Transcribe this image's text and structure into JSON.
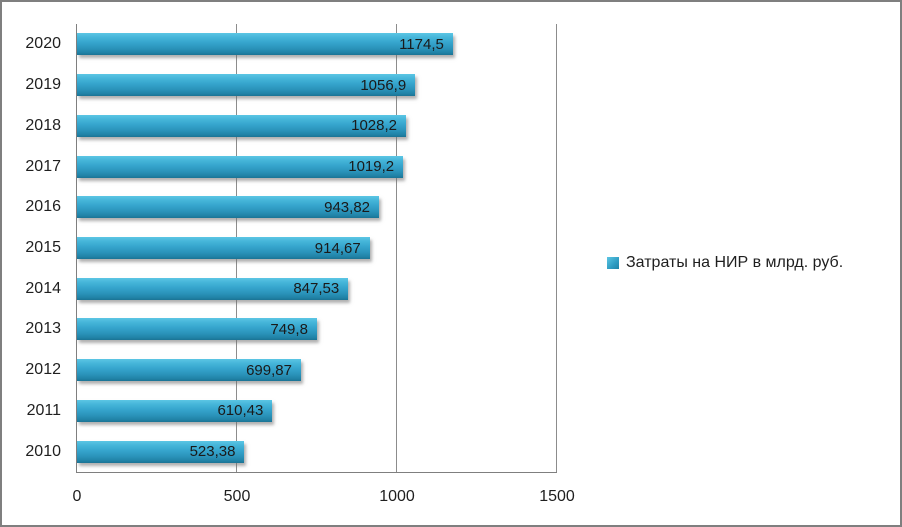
{
  "chart_data": {
    "type": "bar",
    "orientation": "horizontal",
    "title": "",
    "xlabel": "",
    "ylabel": "",
    "categories": [
      "2020",
      "2019",
      "2018",
      "2017",
      "2016",
      "2015",
      "2014",
      "2013",
      "2012",
      "2011",
      "2010"
    ],
    "values": [
      1174.5,
      1056.9,
      1028.2,
      1019.2,
      943.82,
      914.67,
      847.53,
      749.8,
      699.87,
      610.43,
      523.38
    ],
    "value_labels": [
      "1174,5",
      "1056,9",
      "1028,2",
      "1019,2",
      "943,82",
      "914,67",
      "847,53",
      "749,8",
      "699,87",
      "610,43",
      "523,38"
    ],
    "series": [
      {
        "name": "Затраты на НИР в млрд. руб.",
        "values": [
          1174.5,
          1056.9,
          1028.2,
          1019.2,
          943.82,
          914.67,
          847.53,
          749.8,
          699.87,
          610.43,
          523.38
        ]
      }
    ],
    "legend": [
      "Затраты на НИР в млрд. руб."
    ],
    "legend_position": "right-middle",
    "xlim": [
      0,
      1500
    ],
    "x_ticks": [
      "0",
      "500",
      "1000",
      "1500"
    ],
    "x_tick_values": [
      0,
      500,
      1000,
      1500
    ],
    "grid": true,
    "bar_color": "#2F9CC2",
    "gridline_color": "#8C8C8C",
    "axis_color": "#7F7F7F",
    "label_position": "inside-end"
  }
}
